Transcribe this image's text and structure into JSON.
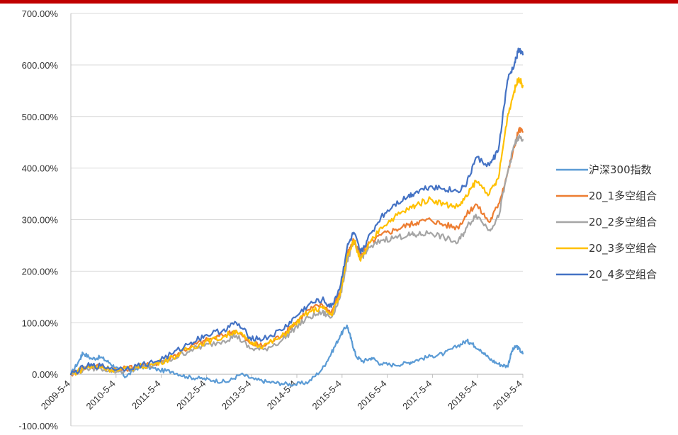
{
  "colors": {
    "top_bar": "#c00000",
    "csi300": "#5b9bd5",
    "p20_1": "#ed7d31",
    "p20_2": "#a5a5a5",
    "p20_3": "#ffc000",
    "p20_4": "#4472c4"
  },
  "chart_data": {
    "type": "line",
    "title": "",
    "xlabel": "",
    "ylabel": "",
    "ylim": [
      -1.0,
      7.0
    ],
    "y_ticks": [
      -1.0,
      0,
      1.0,
      2.0,
      3.0,
      4.0,
      5.0,
      6.0,
      7.0
    ],
    "y_tick_labels": [
      "-100.00%",
      "0.00%",
      "100.00%",
      "200.00%",
      "300.00%",
      "400.00%",
      "500.00%",
      "600.00%",
      "700.00%"
    ],
    "x_tick_labels": [
      "2009-5-4",
      "2010-5-4",
      "2011-5-4",
      "2012-5-4",
      "2013-5-4",
      "2014-5-4",
      "2015-5-4",
      "2016-5-4",
      "2017-5-4",
      "2018-5-4",
      "2019-5-4"
    ],
    "x_tick_values": [
      2009.34,
      2010.34,
      2011.34,
      2012.34,
      2013.34,
      2014.34,
      2015.34,
      2016.34,
      2017.34,
      2018.34,
      2019.34
    ],
    "xlim": [
      2009.34,
      2019.34
    ],
    "grid": true,
    "legend_position": "right",
    "series": [
      {
        "name": "沪深300指数",
        "color_key": "csi300",
        "x": [
          2009.34,
          2009.55,
          2009.6,
          2009.8,
          2010.0,
          2010.2,
          2010.4,
          2010.55,
          2010.8,
          2011.0,
          2011.3,
          2011.6,
          2011.9,
          2012.2,
          2012.5,
          2012.8,
          2013.1,
          2013.4,
          2013.7,
          2014.0,
          2014.3,
          2014.6,
          2014.9,
          2015.1,
          2015.3,
          2015.45,
          2015.55,
          2015.65,
          2015.8,
          2016.0,
          2016.2,
          2016.5,
          2016.8,
          2017.0,
          2017.3,
          2017.6,
          2017.9,
          2018.1,
          2018.2,
          2018.4,
          2018.6,
          2018.8,
          2019.0,
          2019.1,
          2019.2,
          2019.34
        ],
        "values": [
          0.0,
          0.3,
          0.42,
          0.3,
          0.33,
          0.22,
          0.08,
          -0.05,
          0.12,
          0.15,
          0.08,
          0.05,
          -0.05,
          -0.08,
          -0.12,
          -0.15,
          0.0,
          -0.1,
          -0.15,
          -0.18,
          -0.2,
          -0.15,
          0.1,
          0.4,
          0.75,
          0.95,
          0.65,
          0.35,
          0.25,
          0.32,
          0.2,
          0.18,
          0.22,
          0.28,
          0.35,
          0.4,
          0.55,
          0.65,
          0.6,
          0.48,
          0.3,
          0.2,
          0.15,
          0.45,
          0.55,
          0.4
        ]
      },
      {
        "name": "20_1多空组合",
        "color_key": "p20_1",
        "x": [
          2009.34,
          2009.7,
          2010.0,
          2010.4,
          2010.8,
          2011.2,
          2011.6,
          2012.0,
          2012.3,
          2012.7,
          2013.0,
          2013.3,
          2013.6,
          2014.0,
          2014.3,
          2014.6,
          2014.9,
          2015.1,
          2015.3,
          2015.45,
          2015.6,
          2015.75,
          2015.9,
          2016.2,
          2016.5,
          2016.8,
          2017.0,
          2017.3,
          2017.6,
          2017.9,
          2018.1,
          2018.3,
          2018.6,
          2018.8,
          2019.0,
          2019.15,
          2019.25,
          2019.34
        ],
        "values": [
          0.0,
          0.15,
          0.15,
          0.08,
          0.15,
          0.2,
          0.35,
          0.55,
          0.65,
          0.75,
          0.85,
          0.6,
          0.55,
          0.75,
          1.0,
          1.25,
          1.35,
          1.2,
          1.6,
          2.3,
          2.6,
          2.3,
          2.5,
          2.7,
          2.8,
          2.9,
          2.95,
          3.0,
          2.9,
          2.85,
          3.1,
          3.3,
          2.95,
          3.3,
          3.9,
          4.4,
          4.75,
          4.7
        ]
      },
      {
        "name": "20_2多空组合",
        "color_key": "p20_2",
        "x": [
          2009.34,
          2009.7,
          2010.0,
          2010.4,
          2010.8,
          2011.2,
          2011.6,
          2012.0,
          2012.3,
          2012.7,
          2013.0,
          2013.3,
          2013.6,
          2014.0,
          2014.3,
          2014.6,
          2014.9,
          2015.1,
          2015.3,
          2015.45,
          2015.6,
          2015.75,
          2015.9,
          2016.2,
          2016.5,
          2016.8,
          2017.0,
          2017.3,
          2017.6,
          2017.9,
          2018.1,
          2018.3,
          2018.6,
          2018.8,
          2019.0,
          2019.15,
          2019.25,
          2019.34
        ],
        "values": [
          0.0,
          0.12,
          0.12,
          0.05,
          0.12,
          0.18,
          0.3,
          0.48,
          0.55,
          0.65,
          0.75,
          0.5,
          0.48,
          0.65,
          0.9,
          1.1,
          1.2,
          1.1,
          1.5,
          2.2,
          2.55,
          2.25,
          2.4,
          2.6,
          2.65,
          2.7,
          2.7,
          2.75,
          2.65,
          2.55,
          2.85,
          3.1,
          2.8,
          3.05,
          3.9,
          4.45,
          4.6,
          4.55
        ]
      },
      {
        "name": "20_3多空组合",
        "color_key": "p20_3",
        "x": [
          2009.34,
          2009.7,
          2010.0,
          2010.4,
          2010.8,
          2011.2,
          2011.6,
          2012.0,
          2012.3,
          2012.7,
          2013.0,
          2013.3,
          2013.6,
          2014.0,
          2014.3,
          2014.6,
          2014.9,
          2015.1,
          2015.3,
          2015.45,
          2015.6,
          2015.75,
          2015.9,
          2016.2,
          2016.5,
          2016.8,
          2017.0,
          2017.3,
          2017.6,
          2017.9,
          2018.1,
          2018.3,
          2018.6,
          2018.8,
          2019.0,
          2019.15,
          2019.25,
          2019.34
        ],
        "values": [
          0.0,
          0.14,
          0.14,
          0.07,
          0.14,
          0.2,
          0.33,
          0.52,
          0.62,
          0.72,
          0.85,
          0.62,
          0.55,
          0.72,
          0.98,
          1.2,
          1.3,
          1.15,
          1.55,
          2.3,
          2.6,
          2.2,
          2.45,
          2.85,
          3.05,
          3.2,
          3.3,
          3.4,
          3.3,
          3.25,
          3.45,
          3.75,
          3.5,
          3.8,
          5.0,
          5.5,
          5.75,
          5.6
        ]
      },
      {
        "name": "20_4多空组合",
        "color_key": "p20_4",
        "x": [
          2009.34,
          2009.7,
          2010.0,
          2010.4,
          2010.8,
          2011.2,
          2011.6,
          2012.0,
          2012.3,
          2012.7,
          2013.0,
          2013.3,
          2013.6,
          2014.0,
          2014.3,
          2014.6,
          2014.9,
          2015.1,
          2015.3,
          2015.45,
          2015.6,
          2015.75,
          2015.9,
          2016.2,
          2016.5,
          2016.8,
          2017.0,
          2017.3,
          2017.6,
          2017.9,
          2018.1,
          2018.3,
          2018.6,
          2018.8,
          2019.0,
          2019.15,
          2019.25,
          2019.34
        ],
        "values": [
          0.0,
          0.16,
          0.16,
          0.1,
          0.16,
          0.24,
          0.4,
          0.62,
          0.75,
          0.85,
          1.0,
          0.72,
          0.68,
          0.85,
          1.1,
          1.35,
          1.45,
          1.3,
          1.7,
          2.45,
          2.75,
          2.35,
          2.6,
          3.05,
          3.3,
          3.45,
          3.55,
          3.65,
          3.6,
          3.55,
          3.7,
          4.2,
          4.05,
          4.35,
          5.7,
          6.0,
          6.3,
          6.2
        ]
      }
    ]
  }
}
